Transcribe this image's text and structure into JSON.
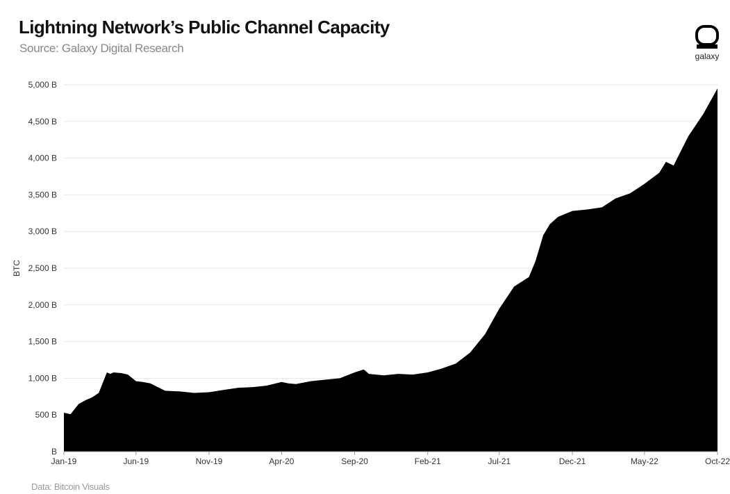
{
  "header": {
    "title": "Lightning Network’s Public Channel Capacity",
    "subtitle": "Source: Galaxy Digital Research"
  },
  "logo": {
    "text": "galaxy"
  },
  "footer": {
    "source_note": "Data: Bitcoin Visuals"
  },
  "colors": {
    "area_fill": "#000000",
    "grid": "#e6e6e6",
    "axis": "#999999"
  },
  "chart_data": {
    "type": "area",
    "title": "Lightning Network’s Public Channel Capacity",
    "subtitle": "Source: Galaxy Digital Research",
    "xlabel": "",
    "ylabel": "BTC",
    "ylim": [
      0,
      5000
    ],
    "grid": true,
    "y_tick_labels": [
      "B",
      "500 B",
      "1,000 B",
      "1,500 B",
      "2,000 B",
      "2,500 B",
      "3,000 B",
      "3,500 B",
      "4,000 B",
      "4,500 B",
      "5,000 B"
    ],
    "y_tick_values": [
      0,
      500,
      1000,
      1500,
      2000,
      2500,
      3000,
      3500,
      4000,
      4500,
      5000
    ],
    "x_tick_labels": [
      "Jan-19",
      "Jun-19",
      "Nov-19",
      "Apr-20",
      "Sep-20",
      "Feb-21",
      "Jul-21",
      "Dec-21",
      "May-22",
      "Oct-22"
    ],
    "x_tick_values": [
      "2019-01",
      "2019-06",
      "2019-11",
      "2020-04",
      "2020-09",
      "2021-02",
      "2021-07",
      "2021-12",
      "2022-05",
      "2022-10"
    ],
    "series": [
      {
        "name": "",
        "x": [
          "2019-01-01",
          "2019-01-15",
          "2019-02-01",
          "2019-02-15",
          "2019-03-01",
          "2019-03-15",
          "2019-04-01",
          "2019-04-08",
          "2019-04-15",
          "2019-05-01",
          "2019-05-15",
          "2019-06-01",
          "2019-06-15",
          "2019-07-01",
          "2019-08-01",
          "2019-09-01",
          "2019-10-01",
          "2019-11-01",
          "2019-12-01",
          "2020-01-01",
          "2020-02-01",
          "2020-03-01",
          "2020-04-01",
          "2020-04-15",
          "2020-05-01",
          "2020-06-01",
          "2020-07-01",
          "2020-08-01",
          "2020-09-01",
          "2020-09-20",
          "2020-10-01",
          "2020-11-01",
          "2020-12-01",
          "2021-01-01",
          "2021-02-01",
          "2021-03-01",
          "2021-04-01",
          "2021-05-01",
          "2021-06-01",
          "2021-07-01",
          "2021-08-01",
          "2021-09-01",
          "2021-09-15",
          "2021-10-01",
          "2021-10-15",
          "2021-11-01",
          "2021-12-01",
          "2022-01-01",
          "2022-02-01",
          "2022-03-01",
          "2022-04-01",
          "2022-05-01",
          "2022-06-01",
          "2022-06-15",
          "2022-07-01",
          "2022-08-01",
          "2022-09-01",
          "2022-10-01"
        ],
        "y": [
          530,
          510,
          650,
          700,
          740,
          800,
          1080,
          1060,
          1080,
          1070,
          1050,
          960,
          950,
          930,
          830,
          820,
          800,
          810,
          840,
          870,
          880,
          900,
          950,
          930,
          920,
          960,
          980,
          1000,
          1080,
          1120,
          1060,
          1040,
          1060,
          1050,
          1080,
          1130,
          1200,
          1350,
          1600,
          1950,
          2250,
          2380,
          2600,
          2950,
          3100,
          3200,
          3280,
          3300,
          3330,
          3450,
          3520,
          3650,
          3800,
          3950,
          3900,
          4300,
          4600,
          4950
        ]
      }
    ]
  }
}
